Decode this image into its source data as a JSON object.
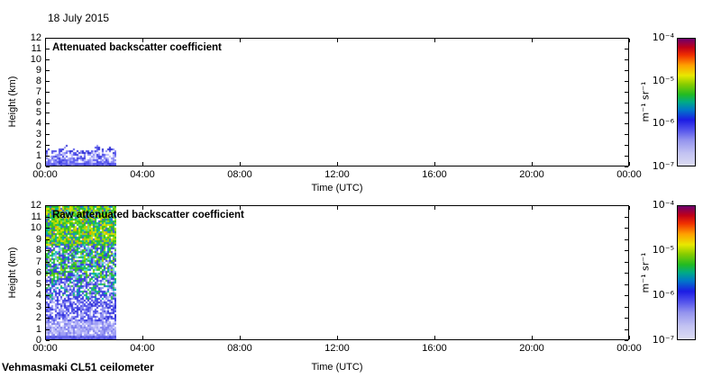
{
  "figure": {
    "date_label": "18 July 2015",
    "footer": "Vehmasmaki CL51 ceilometer",
    "background": "#ffffff"
  },
  "panels": [
    {
      "title": "Attenuated backscatter coefficient",
      "xlabel": "Time (UTC)",
      "ylabel": "Height (km)",
      "x_tick_labels": [
        "00:00",
        "04:00",
        "08:00",
        "12:00",
        "16:00",
        "20:00",
        "00:00"
      ],
      "y_tick_labels": [
        "0",
        "1",
        "2",
        "3",
        "4",
        "5",
        "6",
        "7",
        "8",
        "9",
        "10",
        "11",
        "12"
      ]
    },
    {
      "title": "Raw attenuated backscatter coefficient",
      "xlabel": "Time (UTC)",
      "ylabel": "Height (km)",
      "x_tick_labels": [
        "00:00",
        "04:00",
        "08:00",
        "12:00",
        "16:00",
        "20:00",
        "00:00"
      ],
      "y_tick_labels": [
        "0",
        "1",
        "2",
        "3",
        "4",
        "5",
        "6",
        "7",
        "8",
        "9",
        "10",
        "11",
        "12"
      ]
    }
  ],
  "colorbar": {
    "tick_labels": [
      "10⁻⁴",
      "10⁻⁵",
      "10⁻⁶",
      "10⁻⁷"
    ],
    "unit_label": "m⁻¹ sr⁻¹",
    "scale": {
      "type": "log",
      "min": 1e-07,
      "max": 0.0001
    },
    "gradient_stops": [
      [
        0.0,
        "#dcdcf2"
      ],
      [
        0.1,
        "#c2c2f2"
      ],
      [
        0.2,
        "#9494ee"
      ],
      [
        0.28,
        "#5454ec"
      ],
      [
        0.36,
        "#1c1ce4"
      ],
      [
        0.44,
        "#0078c8"
      ],
      [
        0.5,
        "#00aa88"
      ],
      [
        0.56,
        "#22bb22"
      ],
      [
        0.64,
        "#88cc00"
      ],
      [
        0.71,
        "#e8e800"
      ],
      [
        0.79,
        "#ffa000"
      ],
      [
        0.87,
        "#f03000"
      ],
      [
        0.93,
        "#c00018"
      ],
      [
        1.0,
        "#6e006e"
      ]
    ]
  },
  "chart_data": [
    {
      "type": "heatmap",
      "title": "Attenuated backscatter coefficient",
      "xlabel": "Time (UTC)",
      "ylabel": "Height (km)",
      "x_range_hours": [
        0,
        24
      ],
      "x_tick_labels": [
        "00:00",
        "04:00",
        "08:00",
        "12:00",
        "16:00",
        "20:00",
        "00:00"
      ],
      "y_range_km": [
        0,
        12
      ],
      "y_tick_interval_km": 1,
      "color_scale": {
        "type": "log",
        "min": 1e-07,
        "max": 0.0001,
        "unit": "m⁻¹ sr⁻¹"
      },
      "data_coverage_hours": [
        0,
        2.9
      ],
      "regions": [
        {
          "height_km": [
            0,
            1.3
          ],
          "value_range_m-1sr-1": [
            4e-07,
            1e-06
          ],
          "appearance": "dense speckled blue boundary-layer aerosol"
        },
        {
          "height_km": [
            1.3,
            2.2
          ],
          "value_range_m-1sr-1": [
            2e-07,
            8e-07
          ],
          "appearance": "ragged speckled top edge of boundary layer, darker blue clusters"
        },
        {
          "height_km": [
            2.2,
            12
          ],
          "value_range_m-1sr-1": null,
          "appearance": "no signal (white)"
        }
      ],
      "noise": {
        "layer_base_km": 1.25,
        "layer_variation_km": 0.75,
        "solid_below_km": 0.25,
        "edge_band_km": 0.4,
        "fill_prob_bottom": 0.96,
        "fill_prob_top": 0.55,
        "solid_colors": [
          [
            "#5a5af2",
            0.55
          ],
          [
            "#7878f4",
            0.2
          ],
          [
            "#4040dd",
            0.15
          ],
          [
            "#9a9af6",
            0.1
          ]
        ],
        "body_colors": [
          [
            "#5c5cf0",
            0.3
          ],
          [
            "#8b8bf4",
            0.25
          ],
          [
            "#bcbcfa",
            0.25
          ],
          [
            "#3e3ee0",
            0.1
          ],
          [
            "#e0e0fc",
            0.1
          ]
        ],
        "edge_colors": [
          [
            "#2d2dd4",
            0.45
          ],
          [
            "#5050e8",
            0.3
          ],
          [
            "#8888f0",
            0.25
          ]
        ],
        "stray_prob": 0.03,
        "stray_color": "#8888f0"
      }
    },
    {
      "type": "heatmap",
      "title": "Raw attenuated backscatter coefficient",
      "xlabel": "Time (UTC)",
      "ylabel": "Height (km)",
      "x_range_hours": [
        0,
        24
      ],
      "x_tick_labels": [
        "00:00",
        "04:00",
        "08:00",
        "12:00",
        "16:00",
        "20:00",
        "00:00"
      ],
      "y_range_km": [
        0,
        12
      ],
      "y_tick_interval_km": 1,
      "color_scale": {
        "type": "log",
        "min": 1e-07,
        "max": 0.0001,
        "unit": "m⁻¹ sr⁻¹"
      },
      "data_coverage_hours": [
        0,
        2.9
      ],
      "regions": [
        {
          "height_km": [
            0,
            0.35
          ],
          "value_range_m-1sr-1": [
            4e-07,
            8e-07
          ],
          "appearance": "solid blue near-surface signal"
        },
        {
          "height_km": [
            0.35,
            1.6
          ],
          "value_range_m-1sr-1": [
            1e-07,
            3e-07
          ],
          "appearance": "pale lavender / washed-out weak signal"
        },
        {
          "height_km": [
            1.6,
            3.5
          ],
          "value_range_m-1sr-1": [
            3e-07,
            8e-07
          ],
          "appearance": "blue noise speckle on white"
        },
        {
          "height_km": [
            3.5,
            5.5
          ],
          "value_range_m-1sr-1": [
            5e-07,
            2e-06
          ],
          "appearance": "blue with teal and green specks"
        },
        {
          "height_km": [
            5.5,
            8.5
          ],
          "value_range_m-1sr-1": [
            1e-06,
            4e-06
          ],
          "appearance": "mixed green and blue noise"
        },
        {
          "height_km": [
            8.5,
            12
          ],
          "value_range_m-1sr-1": [
            2e-06,
            1e-05
          ],
          "appearance": "dense green / yellow-green noise, occasional orange"
        }
      ],
      "noise_regions": [
        {
          "h": [
            0,
            0.15
          ],
          "p": 1.0,
          "colors": [
            [
              "#5151e0",
              0.6
            ],
            [
              "#6a6aeb",
              0.4
            ]
          ]
        },
        {
          "h": [
            0.15,
            0.35
          ],
          "p": 1.0,
          "colors": [
            [
              "#6666ee",
              0.55
            ],
            [
              "#8080f2",
              0.25
            ],
            [
              "#4c4cdd",
              0.2
            ]
          ]
        },
        {
          "h": [
            0.35,
            1.6
          ],
          "p": 0.92,
          "colors": [
            [
              "#a0a0f5",
              0.34
            ],
            [
              "#bcbcf8",
              0.27
            ],
            [
              "#7c7cee",
              0.22
            ],
            [
              "#dcdcfc",
              0.17
            ]
          ]
        },
        {
          "h": [
            1.6,
            3.5
          ],
          "p": 0.72,
          "colors": [
            [
              "#4a4ae8",
              0.45
            ],
            [
              "#8c8cf0",
              0.22
            ],
            [
              "#b4b4f6",
              0.18
            ],
            [
              "#2e2ed8",
              0.15
            ]
          ]
        },
        {
          "h": [
            3.5,
            5.5
          ],
          "p": 0.74,
          "colors": [
            [
              "#3c3ce2",
              0.38
            ],
            [
              "#00a8a8",
              0.14
            ],
            [
              "#2fc040",
              0.16
            ],
            [
              "#8c8cf0",
              0.16
            ],
            [
              "#b4b4f6",
              0.16
            ]
          ]
        },
        {
          "h": [
            5.5,
            8.5
          ],
          "p": 0.82,
          "colors": [
            [
              "#2cc22c",
              0.3
            ],
            [
              "#3a3ae4",
              0.24
            ],
            [
              "#00b0a0",
              0.13
            ],
            [
              "#9ed800",
              0.11
            ],
            [
              "#a8a8f0",
              0.12
            ],
            [
              "#60d8d8",
              0.1
            ]
          ]
        },
        {
          "h": [
            8.5,
            12.01
          ],
          "p": 0.93,
          "colors": [
            [
              "#2cc22c",
              0.3
            ],
            [
              "#a4dc00",
              0.24
            ],
            [
              "#e0e000",
              0.13
            ],
            [
              "#00b0b0",
              0.12
            ],
            [
              "#3a5ae4",
              0.14
            ],
            [
              "#ff9800",
              0.04
            ],
            [
              "#60e080",
              0.03
            ]
          ]
        }
      ]
    }
  ]
}
